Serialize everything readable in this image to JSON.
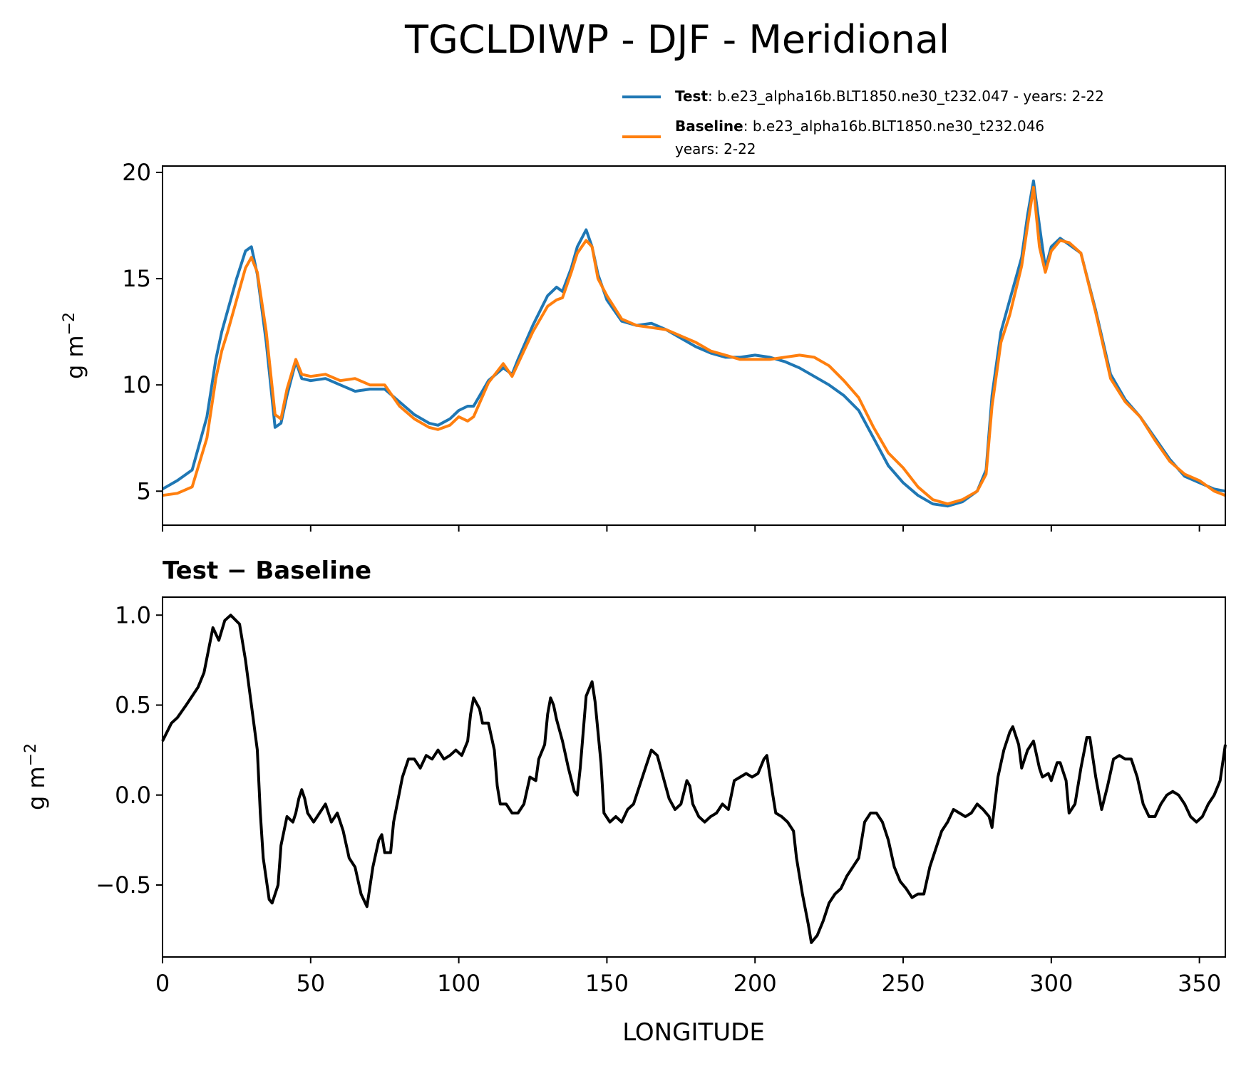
{
  "title": "TGCLDIWP - DJF - Meridional",
  "legend": {
    "test_label": "Test",
    "test_text": ": b.e23_alpha16b.BLT1850.ne30_t232.047 - years: 2-22",
    "baseline_label": "Baseline",
    "baseline_text": ": b.e23_alpha16b.BLT1850.ne30_t232.046",
    "baseline_years": "years: 2-22"
  },
  "colors": {
    "test": "#1f77b4",
    "baseline": "#ff7f0e",
    "diff": "#000000"
  },
  "chart_data": [
    {
      "type": "line",
      "panel": "top",
      "title": "",
      "xlabel": "",
      "ylabel": "g m",
      "ylabel_sup": "−2",
      "xlim": [
        0,
        358.75
      ],
      "ylim": [
        3.4,
        20.3
      ],
      "yticks": [
        5,
        10,
        15,
        20
      ],
      "ytick_labels": [
        "5",
        "10",
        "15",
        "20"
      ],
      "xticks": [
        0,
        50,
        100,
        150,
        200,
        250,
        300,
        350
      ],
      "x": [
        0,
        5,
        10,
        15,
        18,
        20,
        22,
        25,
        28,
        30,
        32,
        35,
        38,
        40,
        42,
        45,
        47,
        50,
        55,
        60,
        65,
        70,
        75,
        80,
        85,
        90,
        93,
        97,
        100,
        103,
        105,
        110,
        115,
        118,
        120,
        125,
        130,
        133,
        135,
        138,
        140,
        143,
        145,
        147,
        150,
        155,
        160,
        165,
        170,
        175,
        180,
        185,
        190,
        195,
        200,
        205,
        210,
        215,
        220,
        225,
        230,
        235,
        240,
        245,
        250,
        255,
        260,
        265,
        270,
        275,
        278,
        280,
        283,
        286,
        290,
        292,
        294,
        296,
        298,
        300,
        303,
        306,
        310,
        315,
        320,
        325,
        330,
        335,
        340,
        345,
        350,
        355,
        358.75
      ],
      "series": [
        {
          "name": "Test",
          "values": [
            5.1,
            5.5,
            6.0,
            8.5,
            11.2,
            12.5,
            13.5,
            15.0,
            16.3,
            16.5,
            15.2,
            12.0,
            8.0,
            8.2,
            9.5,
            11.1,
            10.3,
            10.2,
            10.3,
            10.0,
            9.7,
            9.8,
            9.8,
            9.2,
            8.6,
            8.2,
            8.1,
            8.4,
            8.8,
            9.0,
            9.0,
            10.2,
            10.8,
            10.5,
            11.2,
            12.8,
            14.2,
            14.6,
            14.4,
            15.5,
            16.5,
            17.3,
            16.5,
            15.2,
            14.0,
            13.0,
            12.8,
            12.9,
            12.6,
            12.2,
            11.8,
            11.5,
            11.3,
            11.3,
            11.4,
            11.3,
            11.1,
            10.8,
            10.4,
            10.0,
            9.5,
            8.8,
            7.5,
            6.2,
            5.4,
            4.8,
            4.4,
            4.3,
            4.5,
            5.0,
            6.0,
            9.5,
            12.5,
            14.0,
            16.0,
            18.0,
            19.6,
            17.5,
            15.5,
            16.5,
            16.9,
            16.6,
            16.2,
            13.5,
            10.5,
            9.3,
            8.5,
            7.5,
            6.5,
            5.7,
            5.4,
            5.1,
            5.0
          ]
        },
        {
          "name": "Baseline",
          "values": [
            4.8,
            4.9,
            5.2,
            7.5,
            10.3,
            11.6,
            12.5,
            14.0,
            15.5,
            16.0,
            15.3,
            12.5,
            8.6,
            8.4,
            9.8,
            11.2,
            10.5,
            10.4,
            10.5,
            10.2,
            10.3,
            10.0,
            10.0,
            9.0,
            8.4,
            8.0,
            7.9,
            8.1,
            8.5,
            8.3,
            8.5,
            10.1,
            11.0,
            10.4,
            11.0,
            12.5,
            13.7,
            14.0,
            14.1,
            15.3,
            16.2,
            16.8,
            16.5,
            15.0,
            14.2,
            13.1,
            12.8,
            12.7,
            12.6,
            12.3,
            12.0,
            11.6,
            11.4,
            11.2,
            11.2,
            11.2,
            11.3,
            11.4,
            11.3,
            10.9,
            10.2,
            9.4,
            8.0,
            6.8,
            6.1,
            5.2,
            4.6,
            4.4,
            4.6,
            5.0,
            5.8,
            9.0,
            12.0,
            13.3,
            15.6,
            17.5,
            19.3,
            16.5,
            15.3,
            16.3,
            16.8,
            16.7,
            16.2,
            13.4,
            10.3,
            9.2,
            8.5,
            7.4,
            6.4,
            5.8,
            5.5,
            5.0,
            4.8
          ]
        }
      ]
    },
    {
      "type": "line",
      "panel": "bottom",
      "title": "Test − Baseline",
      "xlabel": "LONGITUDE",
      "ylabel": "g m",
      "ylabel_sup": "−2",
      "xlim": [
        0,
        358.75
      ],
      "ylim": [
        -0.9,
        1.1
      ],
      "yticks": [
        -0.5,
        0.0,
        0.5,
        1.0
      ],
      "ytick_labels": [
        "−0.5",
        "0.0",
        "0.5",
        "1.0"
      ],
      "xticks": [
        0,
        50,
        100,
        150,
        200,
        250,
        300,
        350
      ],
      "xtick_labels": [
        "0",
        "50",
        "100",
        "150",
        "200",
        "250",
        "300",
        "350"
      ],
      "series": [
        {
          "name": "Test − Baseline",
          "points": [
            [
              0,
              0.3
            ],
            [
              3,
              0.4
            ],
            [
              5,
              0.43
            ],
            [
              8,
              0.5
            ],
            [
              10,
              0.55
            ],
            [
              12,
              0.6
            ],
            [
              14,
              0.68
            ],
            [
              17,
              0.93
            ],
            [
              19,
              0.86
            ],
            [
              21,
              0.97
            ],
            [
              23,
              1.0
            ],
            [
              26,
              0.95
            ],
            [
              28,
              0.75
            ],
            [
              30,
              0.5
            ],
            [
              32,
              0.25
            ],
            [
              33,
              -0.1
            ],
            [
              34,
              -0.35
            ],
            [
              36,
              -0.58
            ],
            [
              37,
              -0.6
            ],
            [
              39,
              -0.5
            ],
            [
              40,
              -0.28
            ],
            [
              42,
              -0.12
            ],
            [
              44,
              -0.15
            ],
            [
              45,
              -0.1
            ],
            [
              46,
              -0.02
            ],
            [
              47,
              0.03
            ],
            [
              48,
              -0.02
            ],
            [
              49,
              -0.1
            ],
            [
              51,
              -0.15
            ],
            [
              53,
              -0.1
            ],
            [
              55,
              -0.05
            ],
            [
              57,
              -0.15
            ],
            [
              59,
              -0.1
            ],
            [
              61,
              -0.2
            ],
            [
              63,
              -0.35
            ],
            [
              65,
              -0.4
            ],
            [
              67,
              -0.55
            ],
            [
              69,
              -0.62
            ],
            [
              71,
              -0.4
            ],
            [
              73,
              -0.25
            ],
            [
              74,
              -0.22
            ],
            [
              75,
              -0.32
            ],
            [
              77,
              -0.32
            ],
            [
              78,
              -0.15
            ],
            [
              81,
              0.1
            ],
            [
              83,
              0.2
            ],
            [
              85,
              0.2
            ],
            [
              87,
              0.15
            ],
            [
              89,
              0.22
            ],
            [
              91,
              0.2
            ],
            [
              93,
              0.25
            ],
            [
              95,
              0.2
            ],
            [
              97,
              0.22
            ],
            [
              99,
              0.25
            ],
            [
              101,
              0.22
            ],
            [
              103,
              0.3
            ],
            [
              104,
              0.45
            ],
            [
              105,
              0.54
            ],
            [
              107,
              0.48
            ],
            [
              108,
              0.4
            ],
            [
              110,
              0.4
            ],
            [
              112,
              0.25
            ],
            [
              113,
              0.05
            ],
            [
              114,
              -0.05
            ],
            [
              116,
              -0.05
            ],
            [
              118,
              -0.1
            ],
            [
              120,
              -0.1
            ],
            [
              122,
              -0.05
            ],
            [
              124,
              0.1
            ],
            [
              126,
              0.08
            ],
            [
              127,
              0.2
            ],
            [
              129,
              0.28
            ],
            [
              130,
              0.45
            ],
            [
              131,
              0.54
            ],
            [
              132,
              0.5
            ],
            [
              133,
              0.42
            ],
            [
              135,
              0.3
            ],
            [
              137,
              0.15
            ],
            [
              139,
              0.02
            ],
            [
              140,
              0.0
            ],
            [
              141,
              0.15
            ],
            [
              143,
              0.55
            ],
            [
              145,
              0.63
            ],
            [
              146,
              0.52
            ],
            [
              148,
              0.18
            ],
            [
              149,
              -0.1
            ],
            [
              151,
              -0.15
            ],
            [
              153,
              -0.12
            ],
            [
              155,
              -0.15
            ],
            [
              157,
              -0.08
            ],
            [
              159,
              -0.05
            ],
            [
              161,
              0.05
            ],
            [
              163,
              0.15
            ],
            [
              165,
              0.25
            ],
            [
              167,
              0.22
            ],
            [
              169,
              0.1
            ],
            [
              171,
              -0.02
            ],
            [
              173,
              -0.08
            ],
            [
              175,
              -0.05
            ],
            [
              177,
              0.08
            ],
            [
              178,
              0.05
            ],
            [
              179,
              -0.05
            ],
            [
              181,
              -0.12
            ],
            [
              183,
              -0.15
            ],
            [
              185,
              -0.12
            ],
            [
              187,
              -0.1
            ],
            [
              189,
              -0.05
            ],
            [
              191,
              -0.08
            ],
            [
              192,
              0.0
            ],
            [
              193,
              0.08
            ],
            [
              195,
              0.1
            ],
            [
              197,
              0.12
            ],
            [
              199,
              0.1
            ],
            [
              201,
              0.12
            ],
            [
              203,
              0.2
            ],
            [
              204,
              0.22
            ],
            [
              206,
              0.0
            ],
            [
              207,
              -0.1
            ],
            [
              209,
              -0.12
            ],
            [
              211,
              -0.15
            ],
            [
              213,
              -0.2
            ],
            [
              214,
              -0.35
            ],
            [
              216,
              -0.55
            ],
            [
              218,
              -0.72
            ],
            [
              219,
              -0.82
            ],
            [
              221,
              -0.78
            ],
            [
              223,
              -0.7
            ],
            [
              225,
              -0.6
            ],
            [
              227,
              -0.55
            ],
            [
              229,
              -0.52
            ],
            [
              231,
              -0.45
            ],
            [
              233,
              -0.4
            ],
            [
              235,
              -0.35
            ],
            [
              237,
              -0.15
            ],
            [
              239,
              -0.1
            ],
            [
              241,
              -0.1
            ],
            [
              243,
              -0.15
            ],
            [
              245,
              -0.25
            ],
            [
              247,
              -0.4
            ],
            [
              249,
              -0.48
            ],
            [
              251,
              -0.52
            ],
            [
              253,
              -0.57
            ],
            [
              255,
              -0.55
            ],
            [
              257,
              -0.55
            ],
            [
              259,
              -0.4
            ],
            [
              261,
              -0.3
            ],
            [
              263,
              -0.2
            ],
            [
              265,
              -0.15
            ],
            [
              267,
              -0.08
            ],
            [
              269,
              -0.1
            ],
            [
              271,
              -0.12
            ],
            [
              273,
              -0.1
            ],
            [
              275,
              -0.05
            ],
            [
              277,
              -0.08
            ],
            [
              279,
              -0.12
            ],
            [
              280,
              -0.18
            ],
            [
              282,
              0.1
            ],
            [
              284,
              0.25
            ],
            [
              286,
              0.35
            ],
            [
              287,
              0.38
            ],
            [
              289,
              0.28
            ],
            [
              290,
              0.15
            ],
            [
              292,
              0.25
            ],
            [
              294,
              0.3
            ],
            [
              296,
              0.15
            ],
            [
              297,
              0.1
            ],
            [
              299,
              0.12
            ],
            [
              300,
              0.08
            ],
            [
              302,
              0.18
            ],
            [
              303,
              0.18
            ],
            [
              305,
              0.08
            ],
            [
              306,
              -0.1
            ],
            [
              308,
              -0.05
            ],
            [
              310,
              0.15
            ],
            [
              312,
              0.32
            ],
            [
              313,
              0.32
            ],
            [
              315,
              0.1
            ],
            [
              317,
              -0.08
            ],
            [
              319,
              0.05
            ],
            [
              321,
              0.2
            ],
            [
              323,
              0.22
            ],
            [
              325,
              0.2
            ],
            [
              327,
              0.2
            ],
            [
              329,
              0.1
            ],
            [
              331,
              -0.05
            ],
            [
              333,
              -0.12
            ],
            [
              335,
              -0.12
            ],
            [
              337,
              -0.05
            ],
            [
              339,
              0.0
            ],
            [
              341,
              0.02
            ],
            [
              343,
              0.0
            ],
            [
              345,
              -0.05
            ],
            [
              347,
              -0.12
            ],
            [
              349,
              -0.15
            ],
            [
              351,
              -0.12
            ],
            [
              353,
              -0.05
            ],
            [
              355,
              0.0
            ],
            [
              357,
              0.08
            ],
            [
              358.75,
              0.28
            ]
          ]
        }
      ]
    }
  ]
}
